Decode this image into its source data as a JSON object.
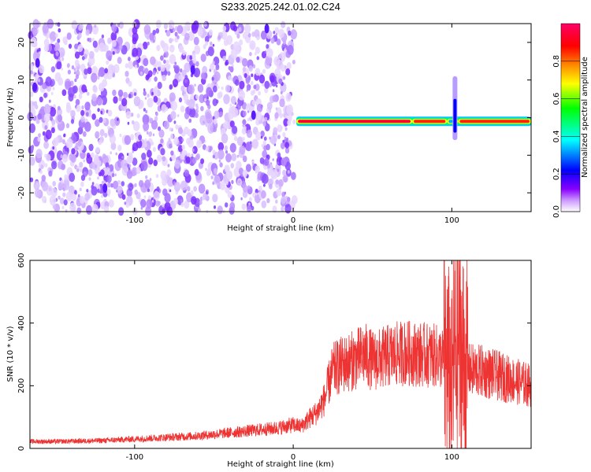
{
  "title": "S233.2025.242.01.02.C24",
  "chart_data": [
    {
      "type": "heatmap",
      "name": "spectrogram",
      "xlabel": "Height of straight line (km)",
      "ylabel": "Frequency (Hz)",
      "xlim": [
        -166,
        150
      ],
      "ylim": [
        -25,
        25
      ],
      "xticks": [
        -100,
        0,
        100
      ],
      "yticks": [
        20,
        10,
        0,
        -10,
        -20
      ],
      "noise_region_km": [
        -166,
        1
      ],
      "band_center_hz": -1.0,
      "band_segments": [
        {
          "x0": 2,
          "x1": 75,
          "level": 0.95
        },
        {
          "x0": 75,
          "x1": 97,
          "level": 0.85
        },
        {
          "x0": 97,
          "x1": 104,
          "level": 0.35
        },
        {
          "x0": 104,
          "x1": 150,
          "level": 0.9
        }
      ],
      "spike": {
        "x": 102,
        "freq_range": [
          -6,
          11
        ]
      },
      "colorbar": {
        "label": "Normalized spectral amplitude",
        "ticks": [
          0.0,
          0.2,
          0.4,
          0.6,
          0.8
        ],
        "range": [
          0,
          1
        ],
        "colors": [
          "#ffffff",
          "#cc99ff",
          "#8800ff",
          "#0000ff",
          "#00ffff",
          "#00ff00",
          "#ffff00",
          "#ff8800",
          "#ff0000",
          "#ff0066"
        ]
      }
    },
    {
      "type": "line",
      "name": "snr",
      "xlabel": "Height of straight line (km)",
      "ylabel": "SNR (10 * v/v)",
      "xlim": [
        -166,
        150
      ],
      "ylim": [
        0,
        600
      ],
      "xticks": [
        -100,
        0,
        100
      ],
      "yticks": [
        0,
        200,
        400,
        600
      ],
      "color": "#ee3333",
      "series": [
        {
          "name": "SNR",
          "x": [
            -166,
            -150,
            -120,
            -100,
            -80,
            -60,
            -40,
            -20,
            -10,
            0,
            5,
            10,
            15,
            20,
            22,
            25,
            30,
            35,
            40,
            45,
            50,
            55,
            60,
            65,
            70,
            80,
            90,
            95,
            98,
            100,
            102,
            104,
            106,
            108,
            110,
            120,
            130,
            140,
            150
          ],
          "y": [
            22,
            22,
            25,
            30,
            35,
            40,
            50,
            60,
            65,
            75,
            70,
            95,
            115,
            160,
            200,
            250,
            265,
            275,
            285,
            300,
            280,
            285,
            295,
            300,
            305,
            300,
            295,
            285,
            250,
            200,
            330,
            380,
            290,
            255,
            250,
            245,
            230,
            215,
            200
          ]
        }
      ]
    }
  ]
}
